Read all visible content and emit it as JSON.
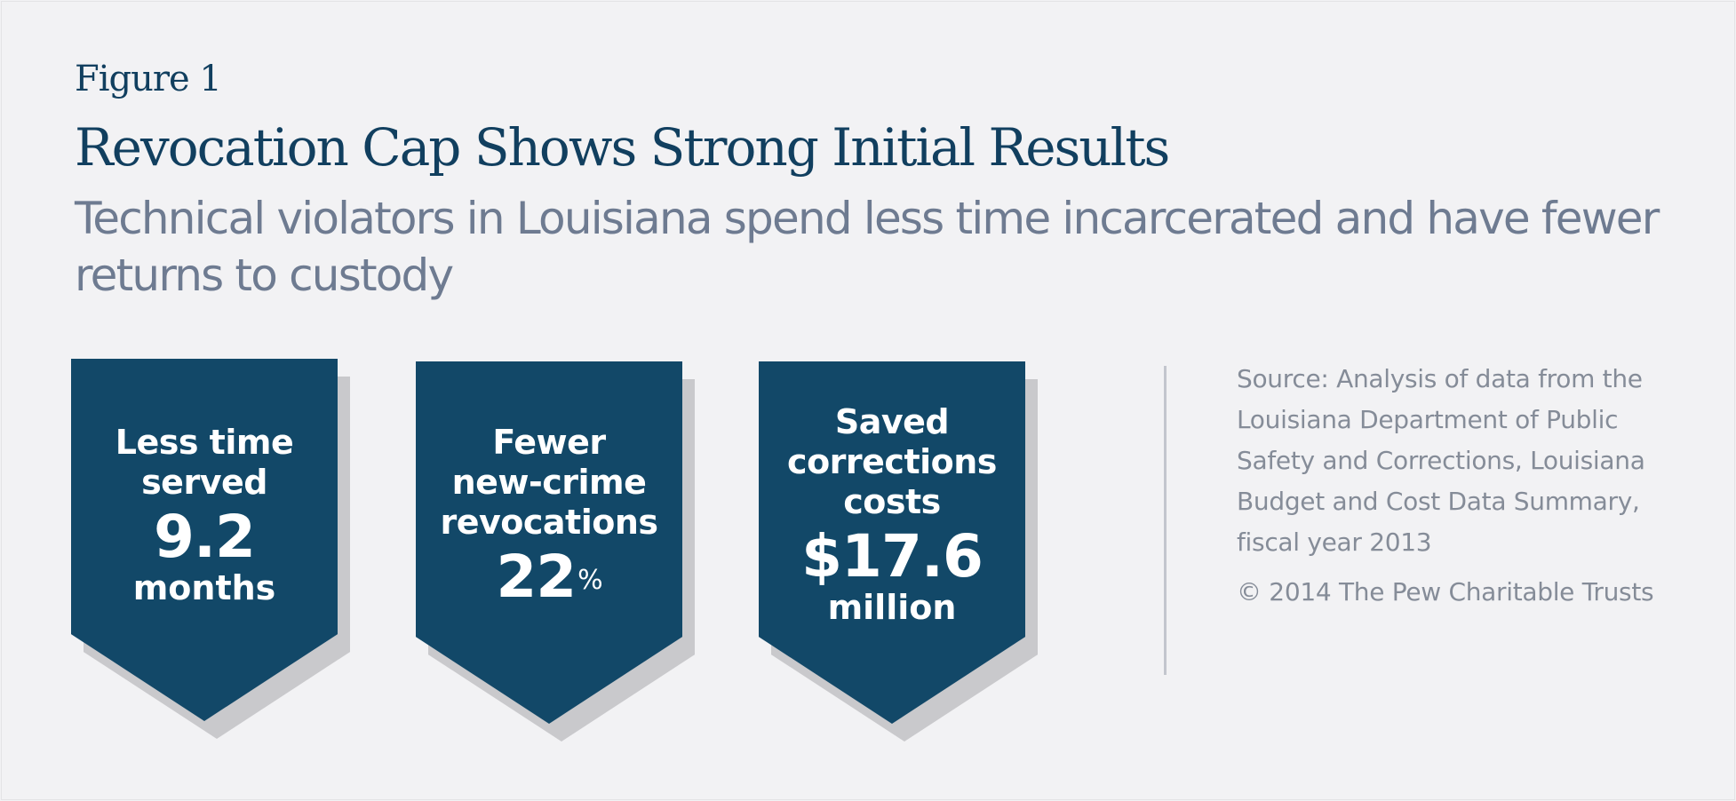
{
  "figure_label": "Figure 1",
  "title": "Revocation Cap Shows Strong Initial Results",
  "subtitle": "Technical violators in Louisiana spend less time incarcerated and have fewer returns to custody",
  "colors": {
    "background": "#f2f2f4",
    "navy": "#124868",
    "title": "#113f5f",
    "subtitle": "#6e7b91",
    "source_text": "#858c98",
    "shadow": "#c9c9cc"
  },
  "stats": [
    {
      "label_line1": "Less time",
      "label_line2": "served",
      "value": "9.2",
      "unit": "months"
    },
    {
      "label_line1": "Fewer",
      "label_line2": "new-crime",
      "label_line3": "revocations",
      "value": "22",
      "value_suffix": "%"
    },
    {
      "label_line1": "Saved",
      "label_line2": "corrections",
      "label_line3": "costs",
      "value": "$17.6",
      "unit": "million"
    }
  ],
  "source": "Source: Analysis of data from the Louisiana Department of Public Safety and Corrections, Louisiana Budget and Cost Data Summary, fiscal year 2013",
  "copyright": "© 2014 The Pew Charitable Trusts"
}
